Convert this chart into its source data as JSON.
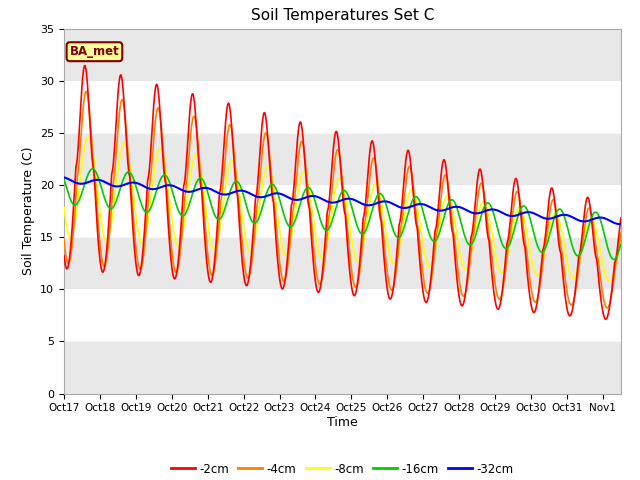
{
  "title": "Soil Temperatures Set C",
  "xlabel": "Time",
  "ylabel": "Soil Temperature (C)",
  "ylim": [
    0,
    35
  ],
  "xlim": [
    0,
    15.5
  ],
  "yticks": [
    0,
    5,
    10,
    15,
    20,
    25,
    30,
    35
  ],
  "xtick_labels": [
    "Oct 17",
    "Oct 18",
    "Oct 19",
    "Oct 20",
    "Oct 21",
    "Oct 22",
    "Oct 23",
    "Oct 24",
    "Oct 25",
    "Oct 26",
    "Oct 27",
    "Oct 28",
    "Oct 29",
    "Oct 30",
    "Oct 31",
    "Nov 1"
  ],
  "xtick_positions": [
    0,
    1,
    2,
    3,
    4,
    5,
    6,
    7,
    8,
    9,
    10,
    11,
    12,
    13,
    14,
    15
  ],
  "bg_color": "#e8e8e8",
  "label_box_text": "BA_met",
  "label_box_bg": "#ffff99",
  "label_box_border": "#800000",
  "legend_entries": [
    "-2cm",
    "-4cm",
    "-8cm",
    "-16cm",
    "-32cm"
  ],
  "line_colors": [
    "#ff0000",
    "#ff8000",
    "#ffff00",
    "#00cc00",
    "#0000ff"
  ],
  "line_widths": [
    1.2,
    1.2,
    1.2,
    1.2,
    1.5
  ],
  "band_colors": [
    "#e8e8e8",
    "#ffffff"
  ],
  "band_edges": [
    0,
    5,
    10,
    15,
    20,
    25,
    30,
    35
  ]
}
